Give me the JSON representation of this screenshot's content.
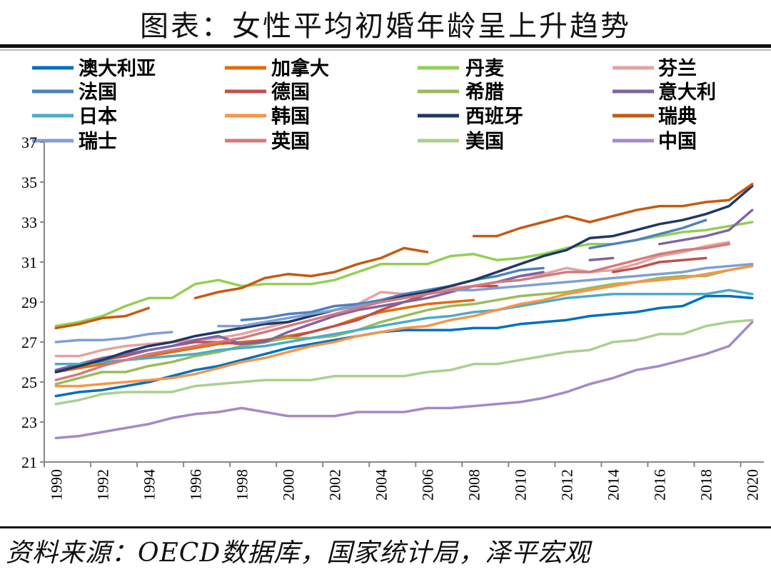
{
  "title": "图表：女性平均初婚年龄呈上升趋势",
  "source": "资料来源：OECD数据库，国家统计局，泽平宏观",
  "chart_data": {
    "type": "line",
    "title": "图表：女性平均初婚年龄呈上升趋势",
    "xlabel": "",
    "ylabel": "",
    "ylim": [
      21,
      37
    ],
    "yticks": [
      21,
      23,
      25,
      27,
      29,
      31,
      33,
      35,
      37
    ],
    "x": [
      1990,
      1991,
      1992,
      1993,
      1994,
      1995,
      1996,
      1997,
      1998,
      1999,
      2000,
      2001,
      2002,
      2003,
      2004,
      2005,
      2006,
      2007,
      2008,
      2009,
      2010,
      2011,
      2012,
      2013,
      2014,
      2015,
      2016,
      2017,
      2018,
      2019,
      2020
    ],
    "xtick_labels": [
      "1990",
      "1992",
      "1994",
      "1996",
      "1998",
      "2000",
      "2002",
      "2004",
      "2006",
      "2008",
      "2010",
      "2012",
      "2014",
      "2016",
      "2018",
      "2020"
    ],
    "grid": false,
    "legend_position": "top",
    "series": [
      {
        "name": "澳大利亚",
        "color": "#0070c0",
        "values": [
          24.3,
          24.5,
          24.6,
          24.8,
          25.0,
          25.3,
          25.6,
          25.8,
          26.1,
          26.4,
          26.7,
          26.9,
          27.1,
          27.3,
          27.5,
          27.6,
          27.6,
          27.6,
          27.7,
          27.7,
          27.9,
          28.0,
          28.1,
          28.3,
          28.4,
          28.5,
          28.7,
          28.8,
          29.3,
          29.3,
          29.2
        ]
      },
      {
        "name": "加拿大",
        "color": "#e36c0a",
        "values": [
          25.5,
          25.7,
          25.9,
          26.1,
          26.3,
          26.5,
          26.7,
          26.9,
          27.0,
          27.1,
          27.3,
          27.5,
          27.8,
          28.2,
          28.5,
          28.7,
          28.9,
          29.0,
          29.1,
          null,
          null,
          null,
          null,
          null,
          null,
          null,
          null,
          null,
          null,
          null,
          null
        ]
      },
      {
        "name": "丹麦",
        "color": "#92d050",
        "values": [
          27.8,
          28.0,
          28.3,
          28.8,
          29.2,
          29.2,
          29.9,
          30.1,
          29.8,
          29.9,
          29.9,
          29.9,
          30.1,
          30.5,
          30.9,
          30.9,
          30.9,
          31.3,
          31.4,
          31.1,
          31.2,
          31.4,
          31.7,
          31.9,
          31.9,
          32.1,
          32.3,
          32.5,
          32.6,
          32.8,
          33.0
        ]
      },
      {
        "name": "芬兰",
        "color": "#e6a1a1",
        "values": [
          26.3,
          26.3,
          26.6,
          26.8,
          26.9,
          27.0,
          27.1,
          27.2,
          27.4,
          27.7,
          28.0,
          28.3,
          28.6,
          28.9,
          29.5,
          29.4,
          29.5,
          29.7,
          29.8,
          30.0,
          30.3,
          30.4,
          30.7,
          30.5,
          30.6,
          30.9,
          31.3,
          31.5,
          31.8,
          32.0,
          null
        ]
      },
      {
        "name": "法国",
        "color": "#4f81bd",
        "values": [
          null,
          null,
          null,
          null,
          null,
          null,
          null,
          null,
          28.1,
          28.2,
          28.4,
          28.5,
          28.8,
          28.9,
          29.1,
          29.4,
          29.6,
          29.8,
          30.1,
          30.3,
          30.6,
          30.7,
          null,
          31.7,
          31.9,
          32.1,
          32.4,
          32.7,
          33.1,
          null,
          null
        ]
      },
      {
        "name": "德国",
        "color": "#c0504d",
        "values": [
          25.5,
          25.8,
          26.1,
          26.3,
          26.6,
          26.8,
          27.0,
          27.0,
          26.9,
          27.1,
          27.2,
          27.5,
          27.8,
          28.1,
          28.6,
          29.0,
          29.4,
          29.6,
          29.8,
          29.8,
          null,
          null,
          null,
          null,
          30.5,
          30.7,
          31.0,
          31.1,
          31.2,
          null,
          null
        ]
      },
      {
        "name": "希腊",
        "color": "#9bbb59",
        "values": [
          24.9,
          25.2,
          25.5,
          25.5,
          25.8,
          26.0,
          26.3,
          26.5,
          26.8,
          27.0,
          27.2,
          27.2,
          27.3,
          27.6,
          28.0,
          28.3,
          28.6,
          28.8,
          28.9,
          29.1,
          29.3,
          29.4,
          29.5,
          29.7,
          29.9,
          30.0,
          30.2,
          30.3,
          30.3,
          30.6,
          30.8
        ]
      },
      {
        "name": "意大利",
        "color": "#8064a2",
        "values": [
          25.6,
          25.9,
          26.2,
          26.4,
          26.6,
          26.8,
          27.1,
          27.3,
          26.9,
          27.0,
          27.5,
          27.9,
          28.3,
          28.6,
          28.8,
          29.0,
          29.2,
          29.5,
          29.8,
          30.0,
          30.3,
          30.5,
          null,
          31.1,
          31.2,
          null,
          31.9,
          32.1,
          32.3,
          32.6,
          33.6
        ]
      },
      {
        "name": "日本",
        "color": "#4bacc6",
        "values": [
          25.9,
          25.9,
          26.0,
          26.1,
          26.2,
          26.3,
          26.4,
          26.6,
          26.7,
          26.8,
          27.0,
          27.2,
          27.4,
          27.6,
          27.8,
          28.0,
          28.2,
          28.3,
          28.5,
          28.6,
          28.8,
          29.0,
          29.2,
          29.3,
          29.4,
          29.4,
          29.4,
          29.4,
          29.4,
          29.6,
          29.4
        ]
      },
      {
        "name": "韩国",
        "color": "#f79646",
        "values": [
          24.8,
          24.8,
          24.9,
          25.0,
          25.1,
          25.2,
          25.4,
          25.7,
          26.0,
          26.2,
          26.5,
          26.8,
          27.0,
          27.3,
          27.5,
          27.7,
          27.8,
          28.1,
          28.3,
          28.6,
          28.9,
          29.1,
          29.4,
          29.6,
          29.8,
          30.0,
          30.1,
          30.2,
          30.4,
          30.6,
          30.8
        ]
      },
      {
        "name": "西班牙",
        "color": "#1f3864",
        "values": [
          25.5,
          25.8,
          26.1,
          26.5,
          26.8,
          27.0,
          27.3,
          27.5,
          27.7,
          27.9,
          28.0,
          28.3,
          28.6,
          28.8,
          29.0,
          29.3,
          29.5,
          29.8,
          30.1,
          30.5,
          30.9,
          31.3,
          31.6,
          32.2,
          32.3,
          32.6,
          32.9,
          33.1,
          33.4,
          33.8,
          34.8
        ]
      },
      {
        "name": "瑞典",
        "color": "#c55a11",
        "values": [
          27.7,
          27.9,
          28.2,
          28.3,
          28.7,
          null,
          29.2,
          29.5,
          29.7,
          30.2,
          30.4,
          30.3,
          30.5,
          30.9,
          31.2,
          31.7,
          31.5,
          null,
          32.3,
          32.3,
          32.7,
          33.0,
          33.3,
          33.0,
          33.3,
          33.6,
          33.8,
          33.8,
          34.0,
          34.1,
          34.9
        ]
      },
      {
        "name": "瑞士",
        "color": "#7f9fd4",
        "values": [
          27.0,
          27.1,
          27.1,
          27.2,
          27.4,
          27.5,
          null,
          27.8,
          27.8,
          28.0,
          28.2,
          28.4,
          28.6,
          28.8,
          29.0,
          29.2,
          29.4,
          29.6,
          29.6,
          29.7,
          29.8,
          29.9,
          30.0,
          30.1,
          30.2,
          30.3,
          30.4,
          30.5,
          30.7,
          30.8,
          30.9
        ]
      },
      {
        "name": "英国",
        "color": "#d47a7a",
        "values": [
          25.1,
          25.4,
          25.8,
          26.1,
          26.4,
          26.6,
          26.8,
          27.0,
          27.2,
          27.5,
          27.8,
          28.1,
          28.4,
          28.7,
          29.0,
          29.2,
          29.4,
          29.6,
          29.8,
          30.0,
          30.1,
          30.3,
          30.5,
          30.5,
          30.8,
          31.1,
          31.4,
          31.6,
          31.7,
          31.9,
          null
        ]
      },
      {
        "name": "美国",
        "color": "#a9d18e",
        "values": [
          23.9,
          24.1,
          24.4,
          24.5,
          24.5,
          24.5,
          24.8,
          24.9,
          25.0,
          25.1,
          25.1,
          25.1,
          25.3,
          25.3,
          25.3,
          25.3,
          25.5,
          25.6,
          25.9,
          25.9,
          26.1,
          26.3,
          26.5,
          26.6,
          27.0,
          27.1,
          27.4,
          27.4,
          27.8,
          28.0,
          28.1
        ]
      },
      {
        "name": "中国",
        "color": "#a48ac7",
        "values": [
          22.2,
          22.3,
          22.5,
          22.7,
          22.9,
          23.2,
          23.4,
          23.5,
          23.7,
          23.5,
          23.3,
          23.3,
          23.3,
          23.5,
          23.5,
          23.5,
          23.7,
          23.7,
          23.8,
          23.9,
          24.0,
          24.2,
          24.5,
          24.9,
          25.2,
          25.6,
          25.8,
          26.1,
          26.4,
          26.8,
          28.0
        ]
      }
    ]
  }
}
